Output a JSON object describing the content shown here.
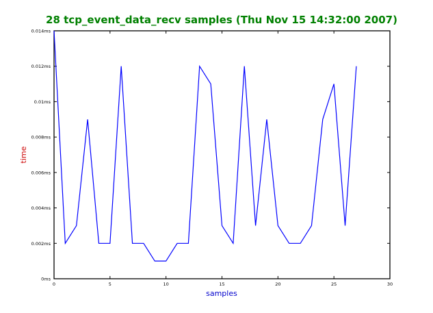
{
  "chart_data": {
    "type": "line",
    "title": "28 tcp_event_data_recv samples (Thu Nov 15 14:32:00 2007)",
    "xlabel": "samples",
    "ylabel": "time",
    "xlim": [
      0,
      30
    ],
    "ylim": [
      0,
      0.014
    ],
    "xticks": [
      0,
      5,
      10,
      15,
      20,
      25,
      30
    ],
    "xtick_labels": [
      "0",
      "5",
      "10",
      "15",
      "20",
      "25",
      "30"
    ],
    "yticks": [
      0,
      0.002,
      0.004,
      0.006,
      0.008,
      0.01,
      0.012,
      0.014
    ],
    "ytick_labels": [
      "0ms",
      "0.002ms",
      "0.004ms",
      "0.006ms",
      "0.008ms",
      "0.01ms",
      "0.012ms",
      "0.014ms"
    ],
    "grid": false,
    "series": [
      {
        "x": [
          0,
          1,
          2,
          3,
          4,
          5,
          6,
          7,
          8,
          9,
          10,
          11,
          12,
          13,
          14,
          15,
          16,
          17,
          18,
          19,
          20,
          21,
          22,
          23,
          24,
          25,
          26,
          27
        ],
        "values": [
          0.014,
          0.002,
          0.003,
          0.009,
          0.002,
          0.002,
          0.012,
          0.002,
          0.002,
          0.001,
          0.001,
          0.002,
          0.002,
          0.012,
          0.011,
          0.003,
          0.002,
          0.012,
          0.003,
          0.009,
          0.003,
          0.002,
          0.002,
          0.003,
          0.009,
          0.011,
          0.003,
          0.012
        ]
      }
    ],
    "colors": {
      "title": "#008000",
      "xlabel": "#0000cc",
      "ylabel": "#cc0000",
      "line": "#0000ff",
      "axes": "#000000"
    }
  }
}
